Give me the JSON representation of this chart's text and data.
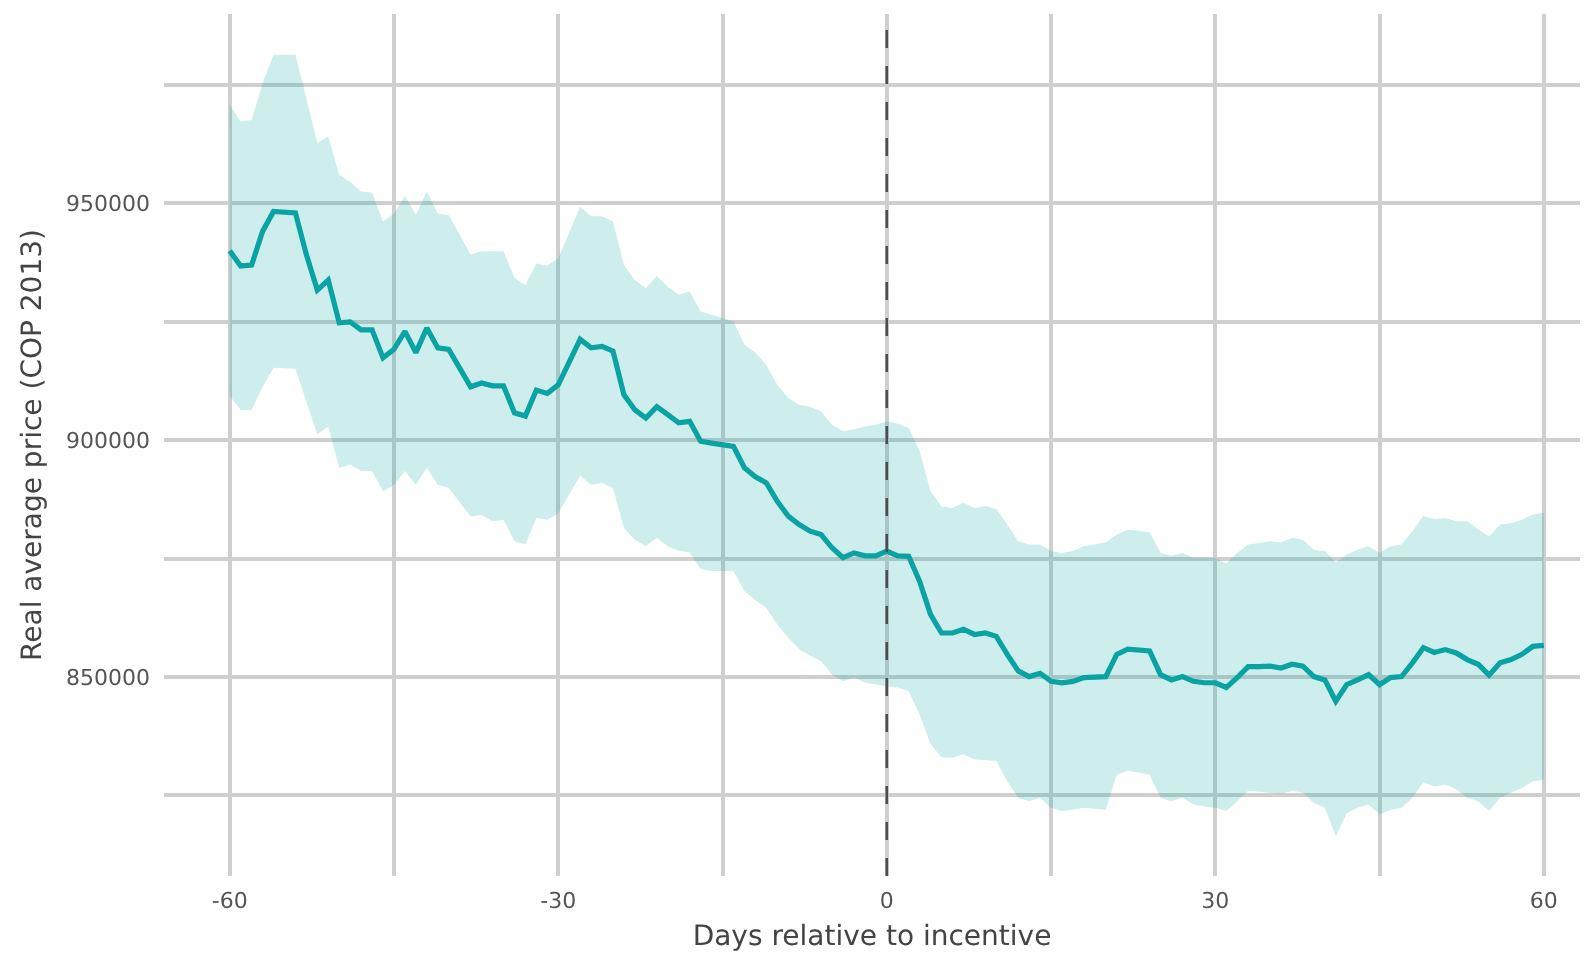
{
  "chart_data": {
    "type": "line",
    "xlabel": "Days relative to incentive",
    "ylabel": "Real average price (COP 2013)",
    "x": [
      -60,
      -59,
      -58,
      -57,
      -56,
      -54,
      -53,
      -52,
      -51,
      -50,
      -49,
      -48,
      -47,
      -46,
      -45,
      -44,
      -43,
      -42,
      -41,
      -40,
      -38,
      -37,
      -36,
      -35,
      -34,
      -33,
      -32,
      -31,
      -30,
      -28,
      -27,
      -26,
      -25,
      -24,
      -23,
      -22,
      -21,
      -20,
      -19,
      -18,
      -17,
      -16,
      -14,
      -13,
      -12,
      -11,
      -10,
      -9,
      -8,
      -7,
      -6,
      -5,
      -4,
      -3,
      -2,
      -1,
      0,
      1,
      2,
      3,
      4,
      5,
      6,
      7,
      8,
      9,
      10,
      11,
      12,
      13,
      14,
      15,
      16,
      17,
      18,
      20,
      21,
      22,
      24,
      25,
      26,
      27,
      28,
      29,
      30,
      31,
      32,
      33,
      34,
      35,
      36,
      37,
      38,
      39,
      40,
      41,
      42,
      43,
      44,
      45,
      46,
      47,
      48,
      49,
      50,
      51,
      52,
      53,
      54,
      55,
      56,
      57,
      58,
      59,
      60
    ],
    "series": [
      {
        "color": "#0aa3a3",
        "values": [
          940000,
          936800,
          937000,
          944100,
          948300,
          948000,
          939200,
          931700,
          933800,
          924800,
          925000,
          923300,
          923300,
          917400,
          919200,
          923000,
          918500,
          923700,
          919500,
          919200,
          911300,
          912100,
          911500,
          911500,
          905800,
          905100,
          910600,
          909900,
          911700,
          921300,
          919500,
          919800,
          918800,
          909600,
          906400,
          904700,
          907100,
          905400,
          903700,
          904000,
          899800,
          899400,
          898700,
          894200,
          892300,
          891000,
          887100,
          884000,
          882200,
          880800,
          880100,
          877300,
          875200,
          876200,
          875600,
          875600,
          876600,
          875600,
          875500,
          870200,
          863200,
          859300,
          859300,
          860100,
          859000,
          859300,
          858600,
          854800,
          851300,
          850100,
          850800,
          849100,
          848800,
          849100,
          849900,
          850100,
          854800,
          855900,
          855500,
          850500,
          849400,
          850100,
          849100,
          848800,
          848800,
          847800,
          849900,
          852200,
          852200,
          852300,
          851900,
          852700,
          852300,
          850100,
          849400,
          844900,
          848400,
          849400,
          850500,
          848400,
          849900,
          850100,
          853000,
          856200,
          855200,
          855800,
          855100,
          853700,
          852700,
          850400,
          853000,
          853700,
          854800,
          856500,
          856700
        ],
        "upper": [
          970800,
          967300,
          967600,
          975400,
          981400,
          981400,
          972200,
          962700,
          964200,
          956000,
          954600,
          952500,
          952300,
          946200,
          947900,
          951600,
          947600,
          952500,
          947900,
          947500,
          939200,
          939900,
          939900,
          939900,
          934300,
          932800,
          937300,
          936900,
          938400,
          949300,
          947300,
          947300,
          946200,
          937000,
          933800,
          932100,
          934700,
          932400,
          930700,
          931400,
          927200,
          926500,
          925100,
          920200,
          918500,
          915900,
          911700,
          908900,
          907500,
          907100,
          906100,
          903300,
          901900,
          902300,
          902900,
          903300,
          904000,
          903500,
          902600,
          897700,
          889200,
          886000,
          885700,
          886800,
          885700,
          886100,
          885500,
          882200,
          878700,
          878000,
          878000,
          876600,
          876200,
          876600,
          877600,
          878400,
          880100,
          881100,
          880600,
          876200,
          875600,
          876200,
          875200,
          875200,
          875200,
          874000,
          876200,
          878000,
          878300,
          878700,
          878400,
          879400,
          879000,
          876900,
          876600,
          874200,
          875900,
          876900,
          877600,
          876200,
          877600,
          878000,
          880800,
          884000,
          883300,
          883600,
          882900,
          882900,
          881200,
          879700,
          882200,
          882500,
          883200,
          884300,
          884700
        ],
        "lower": [
          909400,
          906400,
          906400,
          911300,
          915300,
          915100,
          908200,
          901200,
          902900,
          894200,
          894900,
          893500,
          893500,
          889200,
          890600,
          893500,
          890600,
          894200,
          890600,
          889900,
          883900,
          884200,
          882900,
          883200,
          878700,
          878000,
          883600,
          883200,
          884600,
          892500,
          890600,
          891000,
          889900,
          881500,
          879000,
          877600,
          879400,
          877600,
          876600,
          876300,
          872800,
          872400,
          872400,
          868100,
          866300,
          864600,
          861100,
          858300,
          855900,
          854500,
          853400,
          850500,
          849100,
          849900,
          848800,
          848500,
          848000,
          847800,
          847000,
          842100,
          835800,
          833000,
          833000,
          833700,
          832600,
          832500,
          832300,
          828000,
          824500,
          823800,
          824500,
          822400,
          821700,
          822000,
          822400,
          822000,
          829400,
          830200,
          829400,
          824500,
          823800,
          824500,
          823100,
          822700,
          822400,
          821700,
          823800,
          826000,
          825800,
          825600,
          825300,
          826000,
          825600,
          823400,
          822400,
          816400,
          821300,
          822400,
          823100,
          821000,
          822000,
          822400,
          824500,
          827800,
          826900,
          827300,
          826300,
          824500,
          823800,
          821700,
          824500,
          825600,
          826600,
          828000,
          828300
        ]
      }
    ],
    "xlim": [
      -66,
      63.3
    ],
    "xticks": [
      -60,
      {
        "value": -45,
        "label": null
      },
      -30,
      {
        "value": -15,
        "label": null
      },
      0,
      {
        "value": 15,
        "label": null
      },
      30,
      {
        "value": 45,
        "label": null
      },
      60
    ],
    "ylim": [
      808000,
      990000
    ],
    "yticks": [
      {
        "value": 825000,
        "label": null
      },
      850000,
      {
        "value": 875000,
        "label": null
      },
      900000,
      {
        "value": 925000,
        "label": null
      },
      950000,
      {
        "value": 975000,
        "label": null
      }
    ],
    "grid": true,
    "line_style": "solid",
    "ref_lines": [
      {
        "axis": "x",
        "value": 0,
        "color": "#4d4d4d",
        "line_style": "dashed"
      }
    ]
  }
}
